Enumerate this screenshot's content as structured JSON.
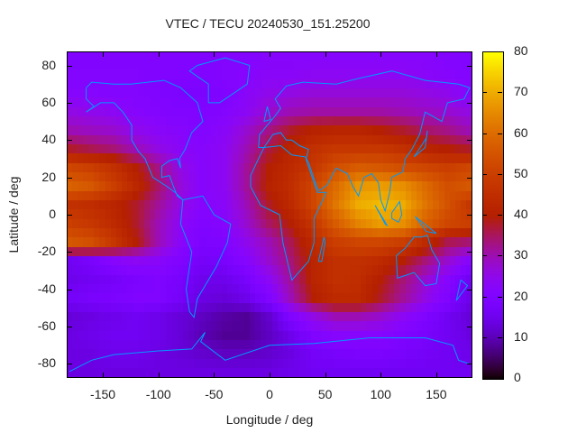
{
  "chart_data": {
    "type": "heatmap",
    "title": "VTEC / TECU 20240530_151.25200",
    "xlabel": "Longitude / deg",
    "ylabel": "Latitude / deg",
    "xlim": [
      -182.5,
      182.5
    ],
    "ylim": [
      -87.5,
      87.5
    ],
    "xticks": [
      -150,
      -100,
      -50,
      0,
      50,
      100,
      150
    ],
    "yticks": [
      80,
      60,
      40,
      20,
      0,
      -20,
      -40,
      -60,
      -80
    ],
    "colorbar": {
      "range": [
        0,
        80
      ],
      "ticks": [
        80,
        70,
        60,
        50,
        40,
        30,
        20,
        10,
        0
      ],
      "palette": "black-purple-red-yellow"
    },
    "coastline_color": "#0099ff",
    "grid_lon": [
      -180,
      -160,
      -140,
      -120,
      -100,
      -80,
      -60,
      -40,
      -20,
      0,
      20,
      40,
      60,
      80,
      100,
      120,
      140,
      160,
      180
    ],
    "grid_lat": [
      85,
      75,
      65,
      55,
      45,
      35,
      25,
      15,
      5,
      -5,
      -15,
      -25,
      -35,
      -45,
      -55,
      -65,
      -75,
      -85
    ],
    "values": [
      [
        20,
        20,
        20,
        20,
        20,
        20,
        20,
        21,
        21,
        22,
        22,
        22,
        22,
        22,
        22,
        22,
        22,
        21,
        20
      ],
      [
        21,
        21,
        21,
        21,
        20,
        20,
        20,
        21,
        22,
        23,
        23,
        24,
        24,
        24,
        24,
        24,
        23,
        22,
        21
      ],
      [
        22,
        22,
        21,
        21,
        20,
        19,
        19,
        20,
        23,
        25,
        26,
        27,
        27,
        27,
        27,
        27,
        26,
        25,
        22
      ],
      [
        26,
        25,
        24,
        22,
        21,
        20,
        20,
        21,
        24,
        28,
        30,
        31,
        31,
        31,
        31,
        30,
        29,
        28,
        26
      ],
      [
        30,
        29,
        28,
        25,
        23,
        22,
        21,
        23,
        28,
        33,
        38,
        41,
        42,
        42,
        40,
        38,
        35,
        33,
        30
      ],
      [
        38,
        36,
        34,
        30,
        26,
        23,
        22,
        24,
        30,
        37,
        42,
        46,
        48,
        48,
        48,
        46,
        42,
        40,
        38
      ],
      [
        52,
        50,
        46,
        40,
        33,
        26,
        22,
        24,
        32,
        40,
        44,
        48,
        54,
        57,
        56,
        54,
        52,
        50,
        52
      ],
      [
        58,
        56,
        50,
        43,
        35,
        27,
        22,
        24,
        32,
        41,
        45,
        52,
        60,
        67,
        68,
        66,
        60,
        54,
        56
      ],
      [
        46,
        45,
        42,
        38,
        32,
        26,
        22,
        23,
        30,
        38,
        44,
        52,
        62,
        70,
        72,
        70,
        62,
        55,
        48
      ],
      [
        50,
        48,
        44,
        38,
        30,
        24,
        20,
        22,
        28,
        35,
        40,
        48,
        57,
        64,
        68,
        66,
        58,
        52,
        50
      ],
      [
        56,
        54,
        48,
        40,
        30,
        23,
        19,
        20,
        25,
        30,
        36,
        44,
        50,
        52,
        52,
        50,
        44,
        36,
        34
      ],
      [
        16,
        18,
        22,
        24,
        23,
        20,
        17,
        18,
        22,
        28,
        34,
        42,
        46,
        46,
        44,
        40,
        34,
        28,
        22
      ],
      [
        15,
        16,
        17,
        19,
        20,
        18,
        15,
        15,
        18,
        24,
        32,
        42,
        46,
        45,
        40,
        34,
        28,
        22,
        16
      ],
      [
        17,
        18,
        19,
        20,
        20,
        17,
        14,
        13,
        15,
        20,
        30,
        40,
        44,
        44,
        38,
        32,
        26,
        20,
        15
      ],
      [
        13,
        14,
        15,
        16,
        15,
        13,
        11,
        9,
        8,
        12,
        20,
        26,
        30,
        30,
        28,
        24,
        20,
        16,
        13
      ],
      [
        14,
        15,
        16,
        16,
        15,
        13,
        10,
        8,
        8,
        11,
        15,
        20,
        22,
        22,
        22,
        20,
        18,
        16,
        14
      ],
      [
        14,
        14,
        15,
        15,
        14,
        13,
        12,
        11,
        11,
        12,
        14,
        17,
        18,
        19,
        19,
        18,
        17,
        16,
        15
      ],
      [
        14,
        14,
        14,
        14,
        14,
        14,
        14,
        14,
        14,
        14,
        15,
        16,
        16,
        16,
        16,
        16,
        16,
        16,
        16
      ]
    ]
  }
}
